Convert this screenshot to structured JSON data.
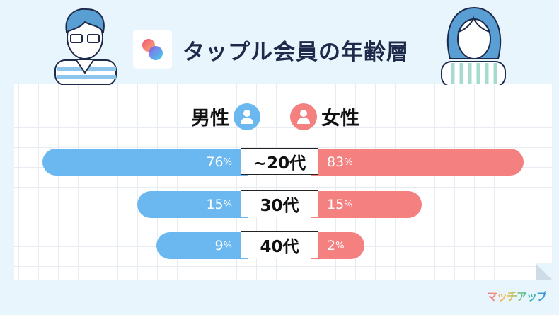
{
  "title": "タップル会員の年齢層",
  "brand": "マッチアップ",
  "colors": {
    "male": "#6bb8f0",
    "female": "#f48080",
    "title": "#1e2a4a"
  },
  "chart_data": {
    "type": "bar",
    "title": "タップル会員の年齢層",
    "legend": {
      "male": "男性",
      "female": "女性"
    },
    "categories": [
      "~20代",
      "30代",
      "40代"
    ],
    "series": [
      {
        "name": "男性",
        "values": [
          76,
          15,
          9
        ]
      },
      {
        "name": "女性",
        "values": [
          83,
          15,
          2
        ]
      }
    ],
    "unit": "%"
  }
}
